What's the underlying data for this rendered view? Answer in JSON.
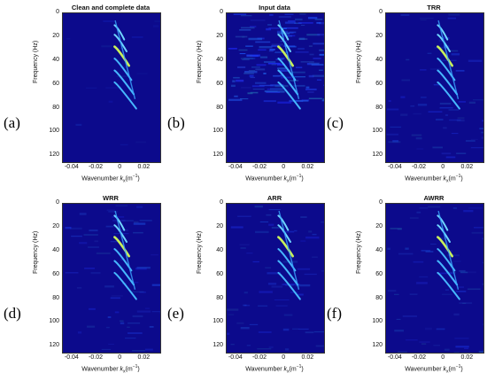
{
  "figure": {
    "panels": [
      {
        "label": "(a)",
        "title": "Clean and complete data",
        "noise": "clean"
      },
      {
        "label": "(b)",
        "title": "Input data",
        "noise": "heavy"
      },
      {
        "label": "(c)",
        "title": "TRR",
        "noise": "light"
      },
      {
        "label": "(d)",
        "title": "WRR",
        "noise": "light"
      },
      {
        "label": "(e)",
        "title": "ARR",
        "noise": "light"
      },
      {
        "label": "(f)",
        "title": "AWRR",
        "noise": "light"
      }
    ],
    "ylabel": "Frequency (Hz)",
    "xlabel_prefix": "Wavenumber ",
    "xlabel_var": "k",
    "xlabel_sub": "x",
    "xlabel_unit": "(m",
    "xlabel_exp": "−1",
    "xlabel_close": ")",
    "yticks": [
      "0",
      "20",
      "40",
      "60",
      "80",
      "100",
      "120"
    ],
    "xticks": [
      "-0.04",
      "-0.02",
      "0",
      "0.02"
    ]
  },
  "chart_data": [
    {
      "type": "heatmap",
      "title": "Clean and complete data",
      "xlabel": "Wavenumber kx(m−1)",
      "ylabel": "Frequency (Hz)",
      "xlim": [
        -0.048,
        0.033
      ],
      "ylim": [
        0,
        125
      ],
      "xticks": [
        -0.04,
        -0.02,
        0,
        0.02
      ],
      "yticks": [
        0,
        20,
        40,
        60,
        80,
        100,
        120
      ]
    },
    {
      "type": "heatmap",
      "title": "Input data",
      "xlabel": "Wavenumber kx(m−1)",
      "ylabel": "Frequency (Hz)",
      "xlim": [
        -0.048,
        0.033
      ],
      "ylim": [
        0,
        125
      ],
      "xticks": [
        -0.04,
        -0.02,
        0,
        0.02
      ],
      "yticks": [
        0,
        20,
        40,
        60,
        80,
        100,
        120
      ]
    },
    {
      "type": "heatmap",
      "title": "TRR",
      "xlabel": "Wavenumber kx(m−1)",
      "ylabel": "Frequency (Hz)",
      "xlim": [
        -0.048,
        0.033
      ],
      "ylim": [
        0,
        125
      ],
      "xticks": [
        -0.04,
        -0.02,
        0,
        0.02
      ],
      "yticks": [
        0,
        20,
        40,
        60,
        80,
        100,
        120
      ]
    },
    {
      "type": "heatmap",
      "title": "WRR",
      "xlabel": "Wavenumber kx(m−1)",
      "ylabel": "Frequency (Hz)",
      "xlim": [
        -0.048,
        0.033
      ],
      "ylim": [
        0,
        125
      ],
      "xticks": [
        -0.04,
        -0.02,
        0,
        0.02
      ],
      "yticks": [
        0,
        20,
        40,
        60,
        80,
        100,
        120
      ]
    },
    {
      "type": "heatmap",
      "title": "ARR",
      "xlabel": "Wavenumber kx(m−1)",
      "ylabel": "Frequency (Hz)",
      "xlim": [
        -0.048,
        0.033
      ],
      "ylim": [
        0,
        125
      ],
      "xticks": [
        -0.04,
        -0.02,
        0,
        0.02
      ],
      "yticks": [
        0,
        20,
        40,
        60,
        80,
        100,
        120
      ]
    },
    {
      "type": "heatmap",
      "title": "AWRR",
      "xlabel": "Wavenumber kx(m−1)",
      "ylabel": "Frequency (Hz)",
      "xlim": [
        -0.048,
        0.033
      ],
      "ylim": [
        0,
        125
      ],
      "xticks": [
        -0.04,
        -0.02,
        0,
        0.02
      ],
      "yticks": [
        0,
        20,
        40,
        60,
        80,
        100,
        120
      ]
    }
  ]
}
